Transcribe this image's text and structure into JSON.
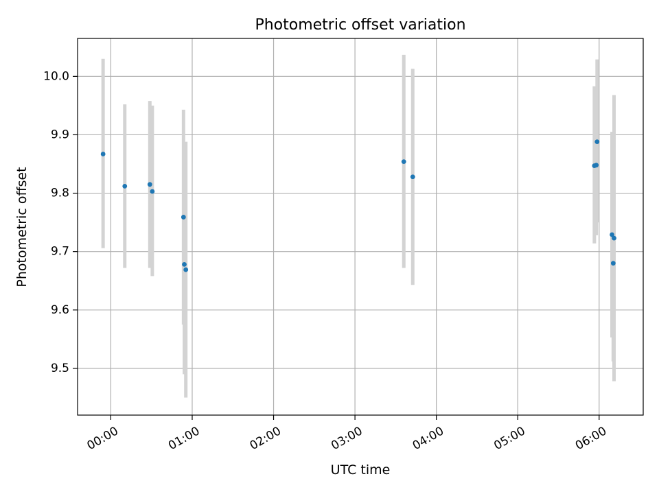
{
  "chart_data": {
    "type": "scatter",
    "title": "Photometric offset variation",
    "xlabel": "UTC time",
    "ylabel": "Photometric offset",
    "x_unit": "minutes since 00:00 UTC",
    "xlim": [
      -24.5,
      392.5
    ],
    "ylim": [
      9.42,
      10.065
    ],
    "xticks": [
      {
        "value": 0,
        "label": "00:00"
      },
      {
        "value": 60,
        "label": "01:00"
      },
      {
        "value": 120,
        "label": "02:00"
      },
      {
        "value": 180,
        "label": "03:00"
      },
      {
        "value": 240,
        "label": "04:00"
      },
      {
        "value": 300,
        "label": "05:00"
      },
      {
        "value": 360,
        "label": "06:00"
      }
    ],
    "yticks": [
      {
        "value": 9.5,
        "label": "9.5"
      },
      {
        "value": 9.6,
        "label": "9.6"
      },
      {
        "value": 9.7,
        "label": "9.7"
      },
      {
        "value": 9.8,
        "label": "9.8"
      },
      {
        "value": 9.9,
        "label": "9.9"
      },
      {
        "value": 10.0,
        "label": "10.0"
      }
    ],
    "grid": true,
    "colors": {
      "point": "#1f77b4",
      "errorbar": "#d3d3d3",
      "grid": "#b0b0b0"
    },
    "points": [
      {
        "x": -5.7,
        "y": 9.867,
        "low": 9.706,
        "high": 10.03
      },
      {
        "x": 10.3,
        "y": 9.812,
        "low": 9.672,
        "high": 9.952
      },
      {
        "x": 28.8,
        "y": 9.815,
        "low": 9.672,
        "high": 9.958
      },
      {
        "x": 30.6,
        "y": 9.803,
        "low": 9.658,
        "high": 9.95
      },
      {
        "x": 53.6,
        "y": 9.759,
        "low": 9.575,
        "high": 9.943
      },
      {
        "x": 54.2,
        "y": 9.678,
        "low": 9.49,
        "high": 9.87
      },
      {
        "x": 55.3,
        "y": 9.669,
        "low": 9.45,
        "high": 9.888
      },
      {
        "x": 216.0,
        "y": 9.854,
        "low": 9.672,
        "high": 10.037
      },
      {
        "x": 222.6,
        "y": 9.828,
        "low": 9.643,
        "high": 10.013
      },
      {
        "x": 356.5,
        "y": 9.847,
        "low": 9.714,
        "high": 9.983
      },
      {
        "x": 357.9,
        "y": 9.848,
        "low": 9.728,
        "high": 9.97
      },
      {
        "x": 358.5,
        "y": 9.888,
        "low": 9.75,
        "high": 10.029
      },
      {
        "x": 369.5,
        "y": 9.729,
        "low": 9.553,
        "high": 9.905
      },
      {
        "x": 370.4,
        "y": 9.68,
        "low": 9.512,
        "high": 9.848
      },
      {
        "x": 371.0,
        "y": 9.723,
        "low": 9.478,
        "high": 9.968
      }
    ]
  }
}
